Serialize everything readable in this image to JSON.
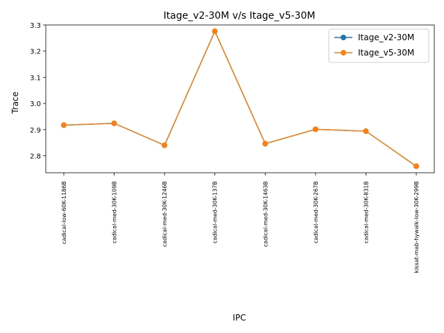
{
  "chart_data": {
    "type": "line",
    "title": "Itage_v2-30M v/s Itage_v5-30M",
    "xlabel": "IPC",
    "ylabel": "Trace",
    "categories": [
      "cadical-low-60K-1186B",
      "cadical-med-30K-109B",
      "cadical-med-30K-1246B",
      "cadical-med-30K-137B",
      "cadical-med-30K-1463B",
      "cadical-med-30K-267B",
      "cadical-med-30K-831B",
      "kissat-mab-hywalk-low-30K-299B"
    ],
    "series": [
      {
        "name": "Itage_v2-30M",
        "color": "#1f77b4",
        "values": [
          2.917,
          2.924,
          2.84,
          3.276,
          2.846,
          2.901,
          2.894,
          2.76
        ]
      },
      {
        "name": "Itage_v5-30M",
        "color": "#ff7f0e",
        "values": [
          2.917,
          2.924,
          2.84,
          3.276,
          2.846,
          2.901,
          2.894,
          2.76
        ]
      }
    ],
    "ylim": [
      2.735,
      3.3
    ],
    "yticks": [
      "2.8",
      "2.9",
      "3.0",
      "3.1",
      "3.2",
      "3.3"
    ],
    "grid": false,
    "legend": "top-right",
    "marker": "circle"
  }
}
